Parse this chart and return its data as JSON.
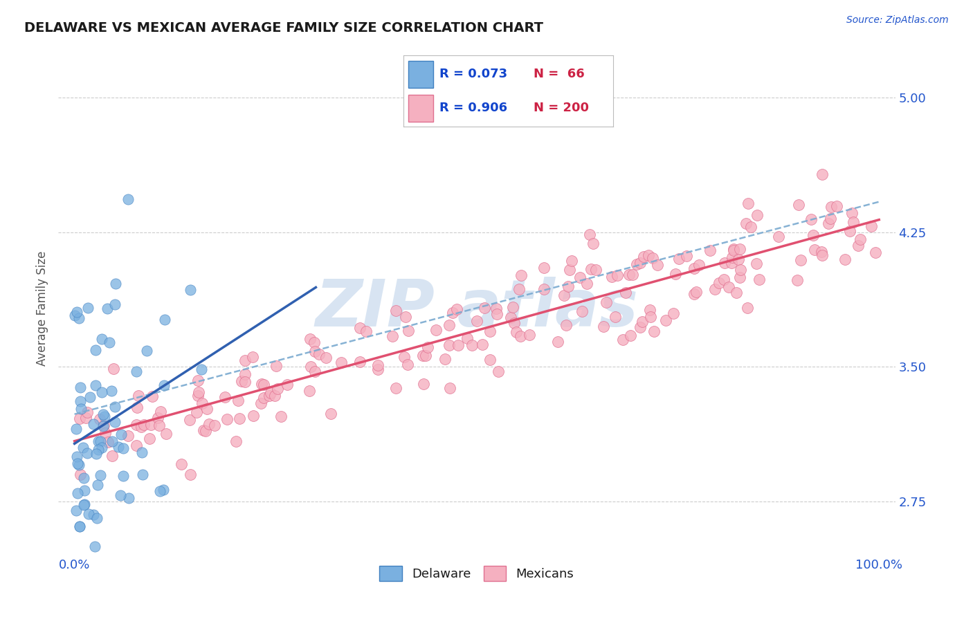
{
  "title": "DELAWARE VS MEXICAN AVERAGE FAMILY SIZE CORRELATION CHART",
  "source": "Source: ZipAtlas.com",
  "ylabel": "Average Family Size",
  "xlim": [
    -2,
    102
  ],
  "ylim": [
    2.45,
    5.2
  ],
  "yticks": [
    2.75,
    3.5,
    4.25,
    5.0
  ],
  "xtick_labels": [
    "0.0%",
    "100.0%"
  ],
  "delaware_R": 0.073,
  "delaware_N": 66,
  "mexican_R": 0.906,
  "mexican_N": 200,
  "delaware_scatter_color": "#7ab0e0",
  "delaware_scatter_edge": "#4080c0",
  "mexican_scatter_color": "#f5b0c0",
  "mexican_scatter_edge": "#e07090",
  "delaware_line_color": "#3060b0",
  "mexican_line_color": "#e05070",
  "dashed_line_color": "#7aaad0",
  "title_color": "#1a1a1a",
  "axis_color": "#2255cc",
  "watermark": "ZIP atlas",
  "watermark_color": "#b8cfe8",
  "background_color": "#ffffff",
  "grid_color": "#cccccc",
  "legend_R_color": "#1144cc",
  "legend_N_color": "#cc2244"
}
